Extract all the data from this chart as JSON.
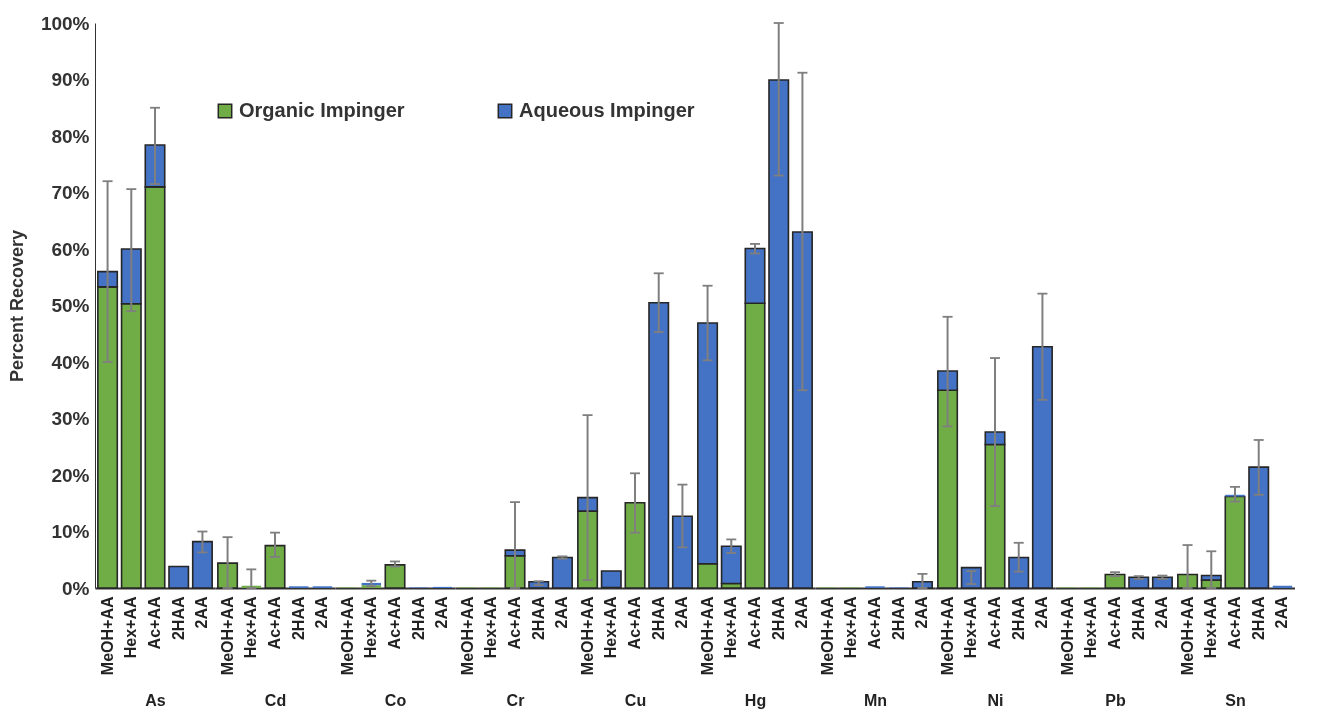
{
  "chart_data": [
    {
      "type": "bar",
      "stacked": true,
      "categories": [
        "MeOH+AA",
        "Hex+AA",
        "Ac+AA",
        "2HAA",
        "2AA"
      ],
      "xlabel": "As",
      "ylabel": "Percent Recovery",
      "ylim": [
        0,
        100
      ],
      "yticks": [
        {
          "value": 0,
          "label": "0%"
        },
        {
          "value": 10,
          "label": "10%"
        },
        {
          "value": 20,
          "label": "20%"
        },
        {
          "value": 30,
          "label": "30%"
        },
        {
          "value": 40,
          "label": "40%"
        },
        {
          "value": 50,
          "label": "50%"
        },
        {
          "value": 60,
          "label": "60%"
        },
        {
          "value": 70,
          "label": "70%"
        },
        {
          "value": 80,
          "label": "80%"
        },
        {
          "value": 90,
          "label": "90%"
        },
        {
          "value": 100,
          "label": "100%"
        }
      ],
      "legend": "top right",
      "series": [
        {
          "name": "Organic Impinger",
          "color": "#70ad47",
          "values": [
            53.3,
            50.3,
            71,
            0,
            0
          ]
        },
        {
          "name": "Aqueous Impinger",
          "color": "#4472c4",
          "values": [
            2.7,
            9.7,
            7.4,
            3.8,
            8.2
          ],
          "errors": [
            [
              40,
              72
            ],
            [
              49,
              70.6
            ],
            [
              71.5,
              85
            ],
            null,
            [
              6.3,
              10
            ]
          ]
        }
      ]
    },
    {
      "type": "bar",
      "stacked": true,
      "categories": [
        "MeOH+AA",
        "Hex+AA",
        "Ac+AA",
        "2HAA",
        "2AA"
      ],
      "xlabel": "Cd",
      "ylim": [
        0,
        100
      ],
      "tick_labels": "x",
      "series": [
        {
          "name": "Organic Impinger",
          "color": "#70ad47",
          "values": [
            4.4,
            0.4,
            7.5,
            0,
            0
          ]
        },
        {
          "name": "Aqueous Impinger",
          "color": "#4472c4",
          "values": [
            0,
            0,
            0,
            0.3,
            0.3
          ],
          "errors": [
            [
              0,
              9
            ],
            [
              0,
              3.3
            ],
            [
              5.5,
              9.8
            ],
            null,
            null
          ]
        }
      ]
    },
    {
      "type": "bar",
      "stacked": true,
      "categories": [
        "MeOH+AA",
        "Hex+AA",
        "Ac+AA",
        "2HAA",
        "2AA"
      ],
      "xlabel": "Co",
      "ylim": [
        0,
        100
      ],
      "tick_labels": "x",
      "series": [
        {
          "name": "Organic Impinger",
          "color": "#70ad47",
          "values": [
            0.1,
            0.5,
            4.1,
            0,
            0
          ]
        },
        {
          "name": "Aqueous Impinger",
          "color": "#4472c4",
          "values": [
            0,
            0.4,
            0,
            0.1,
            0.2
          ],
          "errors": [
            null,
            [
              0.3,
              1.3
            ],
            [
              3.8,
              4.7
            ],
            null,
            null
          ]
        }
      ]
    },
    {
      "type": "bar",
      "stacked": true,
      "categories": [
        "MeOH+AA",
        "Hex+AA",
        "Ac+AA",
        "2HAA",
        "2AA"
      ],
      "xlabel": "Cr",
      "ylim": [
        0,
        100
      ],
      "tick_labels": "x",
      "series": [
        {
          "name": "Organic Impinger",
          "color": "#70ad47",
          "values": [
            0.1,
            0.1,
            5.7,
            0,
            0
          ]
        },
        {
          "name": "Aqueous Impinger",
          "color": "#4472c4",
          "values": [
            0,
            0,
            1.0,
            1.1,
            5.4
          ],
          "errors": [
            null,
            null,
            [
              0,
              15.2
            ],
            [
              0.5,
              1.2
            ],
            [
              5.2,
              5.6
            ]
          ]
        }
      ]
    },
    {
      "type": "bar",
      "stacked": true,
      "categories": [
        "MeOH+AA",
        "Hex+AA",
        "Ac+AA",
        "2HAA",
        "2AA"
      ],
      "xlabel": "Cu",
      "ylim": [
        0,
        100
      ],
      "tick_labels": "x",
      "series": [
        {
          "name": "Organic Impinger",
          "color": "#70ad47",
          "values": [
            13.6,
            0.1,
            15.1,
            0,
            0
          ]
        },
        {
          "name": "Aqueous Impinger",
          "color": "#4472c4",
          "values": [
            2.4,
            2.9,
            0,
            50.5,
            12.7
          ],
          "errors": [
            [
              1.4,
              30.6
            ],
            null,
            [
              9.8,
              20.3
            ],
            [
              45.3,
              55.7
            ],
            [
              7.2,
              18.3
            ]
          ]
        }
      ]
    },
    {
      "type": "bar",
      "stacked": true,
      "categories": [
        "MeOH+AA",
        "Hex+AA",
        "Ac+AA",
        "2HAA",
        "2AA"
      ],
      "xlabel": "Hg",
      "ylim": [
        0,
        100
      ],
      "tick_labels": "x",
      "series": [
        {
          "name": "Organic Impinger",
          "color": "#70ad47",
          "values": [
            4.3,
            0.8,
            50.4,
            0,
            0
          ]
        },
        {
          "name": "Aqueous Impinger",
          "color": "#4472c4",
          "values": [
            42.6,
            6.6,
            9.7,
            89.9,
            63.0
          ],
          "errors": [
            [
              40.3,
              53.5
            ],
            [
              6.2,
              8.6
            ],
            [
              59.2,
              60.9
            ],
            [
              73,
              100
            ],
            [
              35,
              91.2
            ]
          ]
        }
      ]
    },
    {
      "type": "bar",
      "stacked": true,
      "categories": [
        "MeOH+AA",
        "Hex+AA",
        "Ac+AA",
        "2HAA",
        "2AA"
      ],
      "xlabel": "Mn",
      "ylim": [
        0,
        100
      ],
      "tick_labels": "x",
      "series": [
        {
          "name": "Organic Impinger",
          "color": "#70ad47",
          "values": [
            0.1,
            0.1,
            0,
            0,
            0
          ]
        },
        {
          "name": "Aqueous Impinger",
          "color": "#4472c4",
          "values": [
            0,
            0,
            0.3,
            0.1,
            1.1
          ],
          "errors": [
            null,
            null,
            null,
            null,
            [
              0,
              2.5
            ]
          ]
        }
      ]
    },
    {
      "type": "bar",
      "stacked": true,
      "categories": [
        "MeOH+AA",
        "Hex+AA",
        "Ac+AA",
        "2HAA",
        "2AA"
      ],
      "xlabel": "Ni",
      "ylim": [
        0,
        100
      ],
      "tick_labels": "x",
      "series": [
        {
          "name": "Organic Impinger",
          "color": "#70ad47",
          "values": [
            35,
            0,
            25.4,
            0,
            0
          ]
        },
        {
          "name": "Aqueous Impinger",
          "color": "#4472c4",
          "values": [
            3.4,
            3.6,
            2.2,
            5.4,
            42.7
          ],
          "errors": [
            [
              28.6,
              48
            ],
            [
              0.7,
              3.0
            ],
            [
              14.5,
              40.7
            ],
            [
              2.9,
              8
            ],
            [
              33.3,
              52.1
            ]
          ]
        }
      ]
    },
    {
      "type": "bar",
      "stacked": true,
      "categories": [
        "MeOH+AA",
        "Hex+AA",
        "Ac+AA",
        "2HAA",
        "2AA"
      ],
      "xlabel": "Pb",
      "ylim": [
        0,
        100
      ],
      "tick_labels": "x",
      "series": [
        {
          "name": "Organic Impinger",
          "color": "#70ad47",
          "values": [
            0.1,
            0.1,
            2.4,
            0,
            0
          ]
        },
        {
          "name": "Aqueous Impinger",
          "color": "#4472c4",
          "values": [
            0,
            0,
            0,
            1.9,
            1.9
          ],
          "errors": [
            null,
            null,
            [
              2.1,
              2.8
            ],
            [
              1.6,
              2.1
            ],
            [
              1.6,
              2.2
            ]
          ]
        }
      ]
    },
    {
      "type": "bar",
      "stacked": true,
      "categories": [
        "MeOH+AA",
        "Hex+AA",
        "Ac+AA",
        "2HAA",
        "2AA"
      ],
      "xlabel": "Sn",
      "ylim": [
        0,
        100
      ],
      "tick_labels": "x",
      "series": [
        {
          "name": "Organic Impinger",
          "color": "#70ad47",
          "values": [
            2.4,
            1.4,
            16.2,
            0,
            0
          ]
        },
        {
          "name": "Aqueous Impinger",
          "color": "#4472c4",
          "values": [
            0,
            0.8,
            0.3,
            21.4,
            0.4
          ],
          "errors": [
            [
              0,
              7.6
            ],
            [
              0,
              6.5
            ],
            [
              15.3,
              17.9
            ],
            [
              16.5,
              26.2
            ],
            null
          ]
        }
      ]
    }
  ]
}
